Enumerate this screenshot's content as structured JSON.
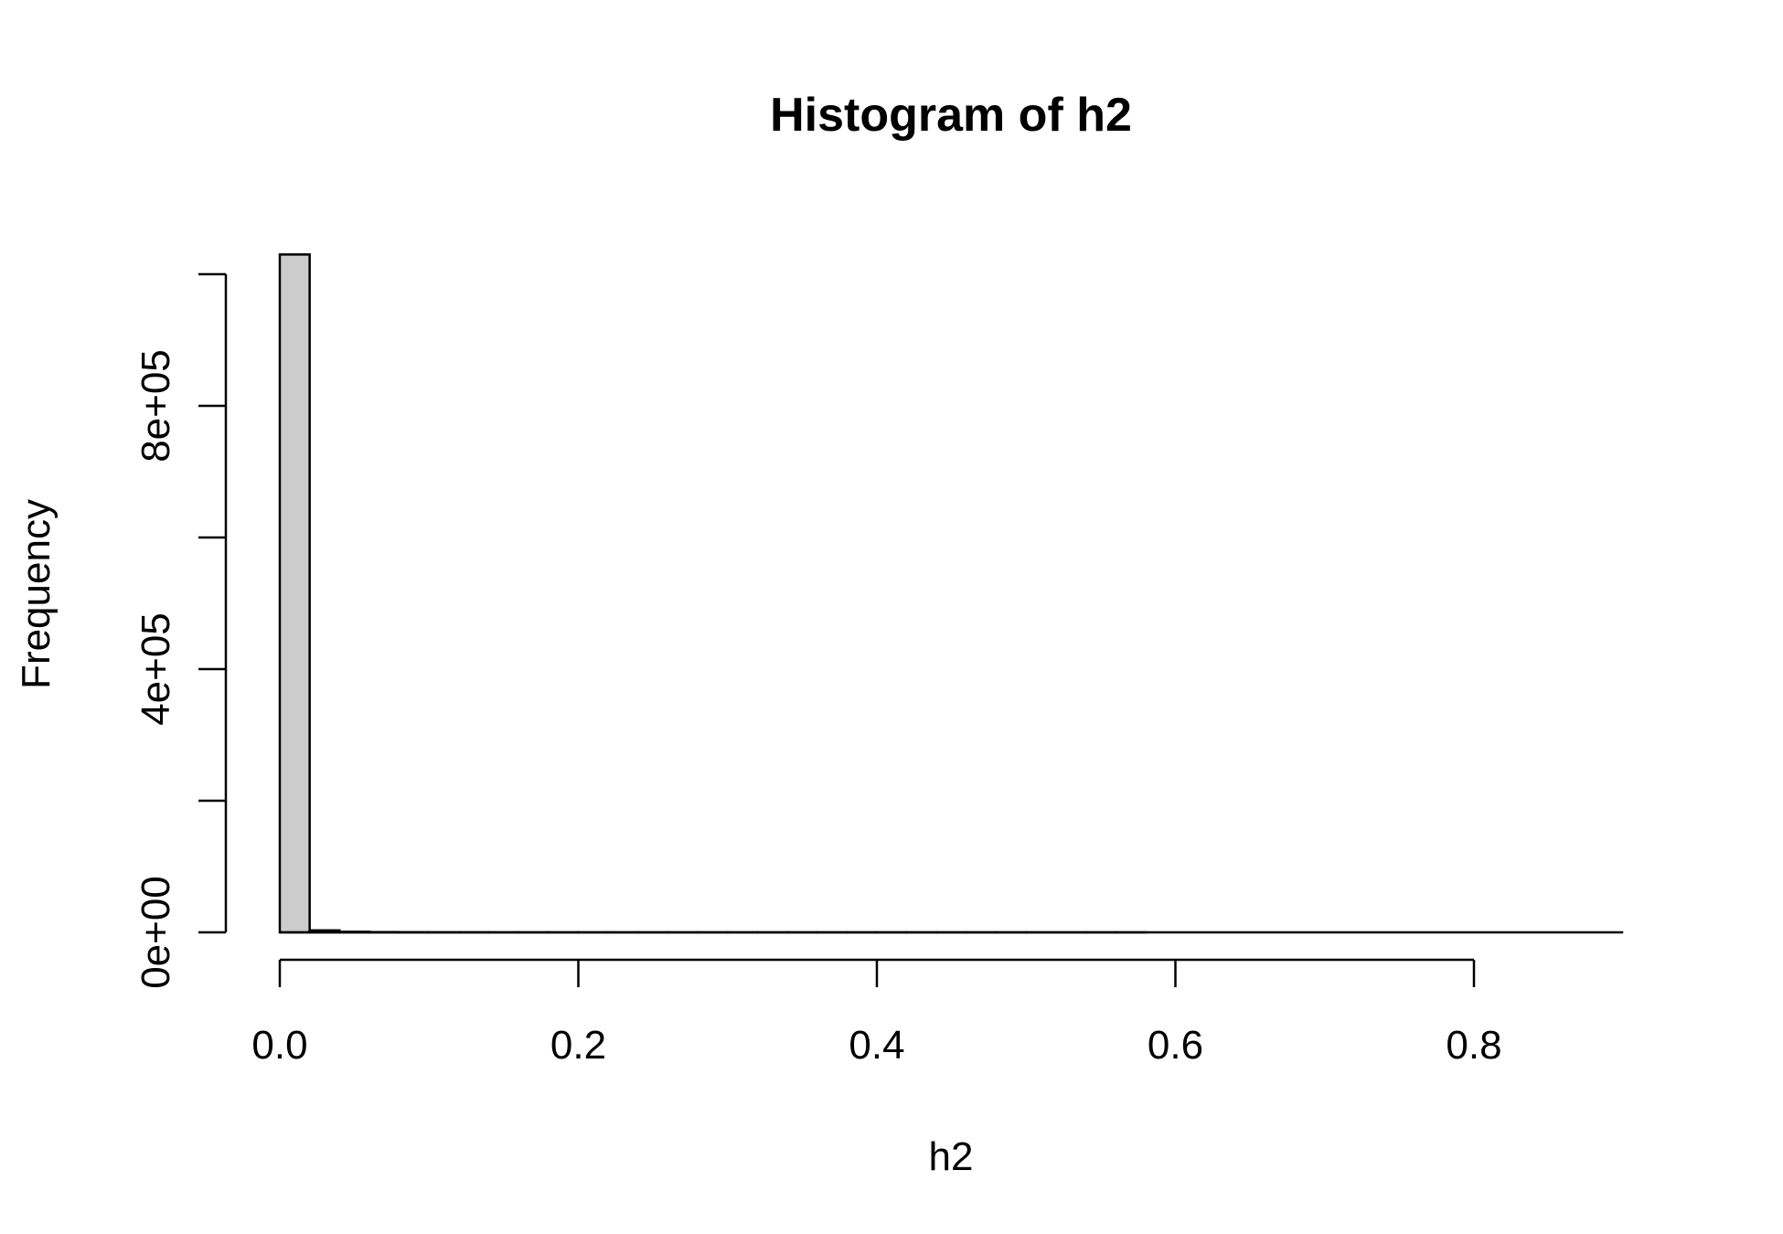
{
  "chart_data": {
    "type": "bar",
    "title": "Histogram of h2",
    "xlabel": "h2",
    "ylabel": "Frequency",
    "bins": {
      "edges": [
        0.0,
        0.02,
        0.04,
        0.06,
        0.08,
        0.1,
        0.12,
        0.14,
        0.16,
        0.18,
        0.2,
        0.22,
        0.24,
        0.26,
        0.28,
        0.3,
        0.32,
        0.34,
        0.36,
        0.38,
        0.4,
        0.42,
        0.44,
        0.46,
        0.48,
        0.5,
        0.52,
        0.54,
        0.56,
        0.58,
        0.6,
        0.62,
        0.64,
        0.66,
        0.68,
        0.7,
        0.72,
        0.74,
        0.76,
        0.78,
        0.8,
        0.82,
        0.84,
        0.86,
        0.88,
        0.9
      ],
      "counts": [
        1030000,
        3000,
        900,
        400,
        200,
        100,
        60,
        40,
        30,
        20,
        15,
        10,
        8,
        6,
        5,
        4,
        3,
        3,
        2,
        2,
        2,
        1,
        1,
        1,
        1,
        1,
        1,
        1,
        1,
        0,
        0,
        0,
        0,
        0,
        0,
        0,
        0,
        0,
        0,
        0,
        0,
        0,
        0,
        0,
        0
      ]
    },
    "xlim": [
      0,
      0.9
    ],
    "ylim": [
      0,
      1030000
    ],
    "x_ticks": [
      0.0,
      0.2,
      0.4,
      0.6,
      0.8
    ],
    "x_tick_labels": [
      "0.0",
      "0.2",
      "0.4",
      "0.6",
      "0.8"
    ],
    "y_ticks": [
      0,
      200000,
      400000,
      600000,
      800000,
      1000000
    ],
    "y_tick_labels": [
      "0e+00",
      "",
      "4e+05",
      "",
      "8e+05",
      ""
    ],
    "grid": false,
    "bar_color": "#cccccc"
  }
}
